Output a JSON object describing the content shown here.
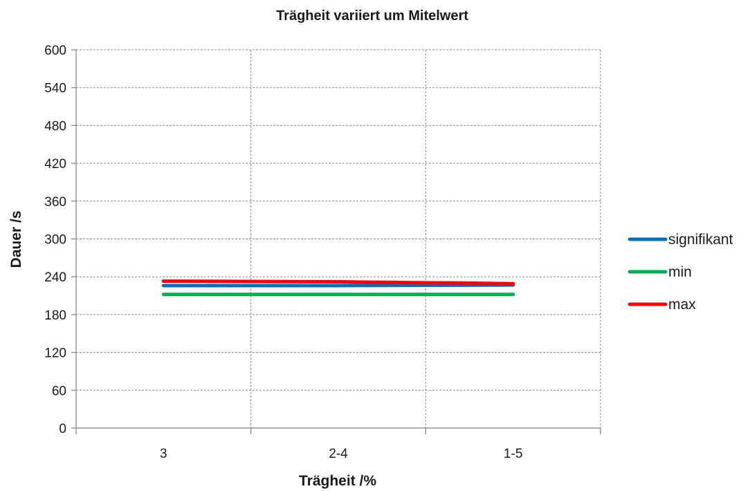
{
  "chart_data": {
    "type": "line",
    "title": "Trägheit variiert um Mitelwert",
    "xlabel": "Trägheit /%",
    "ylabel": "Dauer /s",
    "categories": [
      "3",
      "2-4",
      "1-5"
    ],
    "ylim": [
      0,
      600
    ],
    "yticks": [
      0,
      60,
      120,
      180,
      240,
      300,
      360,
      420,
      480,
      540,
      600
    ],
    "grid": true,
    "legend_position": "right",
    "series": [
      {
        "name": "signifikant",
        "values": [
          226,
          226,
          227
        ],
        "color": "#0070C0"
      },
      {
        "name": "min",
        "values": [
          212,
          212,
          212
        ],
        "color": "#00B050"
      },
      {
        "name": "max",
        "values": [
          233,
          232,
          229
        ],
        "color": "#FF0000"
      }
    ]
  }
}
